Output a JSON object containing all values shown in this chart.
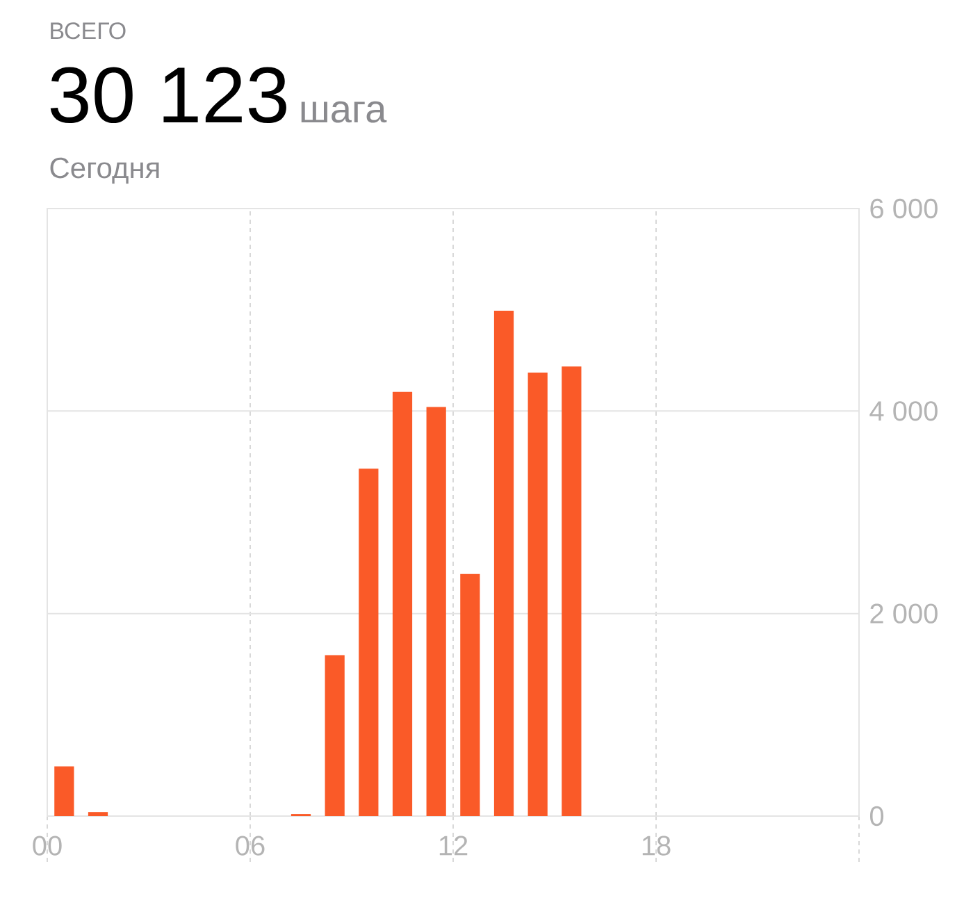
{
  "chart_data": {
    "type": "bar",
    "title": "30 123",
    "subtitle": "Сегодня",
    "annotations": [
      "ВСЕГО",
      "шага"
    ],
    "x": [
      0.5,
      1.5,
      7.5,
      8.5,
      9.5,
      10.5,
      11.5,
      12.5,
      13.5,
      14.5,
      15.5
    ],
    "values": [
      490,
      40,
      20,
      1590,
      3430,
      4190,
      4040,
      2390,
      4990,
      4380,
      4440
    ],
    "color": "#fa5a28",
    "xlim": [
      0,
      24
    ],
    "xticks": [
      {
        "value": 0,
        "label": "00"
      },
      {
        "value": 6,
        "label": "06"
      },
      {
        "value": 12,
        "label": "12"
      },
      {
        "value": 18,
        "label": "18"
      },
      {
        "value": 24,
        "label": null
      }
    ],
    "ylim": [
      0,
      6000
    ],
    "yticks": [
      0,
      {
        "value": 2000,
        "label": "2 000"
      },
      {
        "value": 4000,
        "label": "4 000"
      },
      {
        "value": 6000,
        "label": "6 000"
      }
    ],
    "grid": true
  }
}
